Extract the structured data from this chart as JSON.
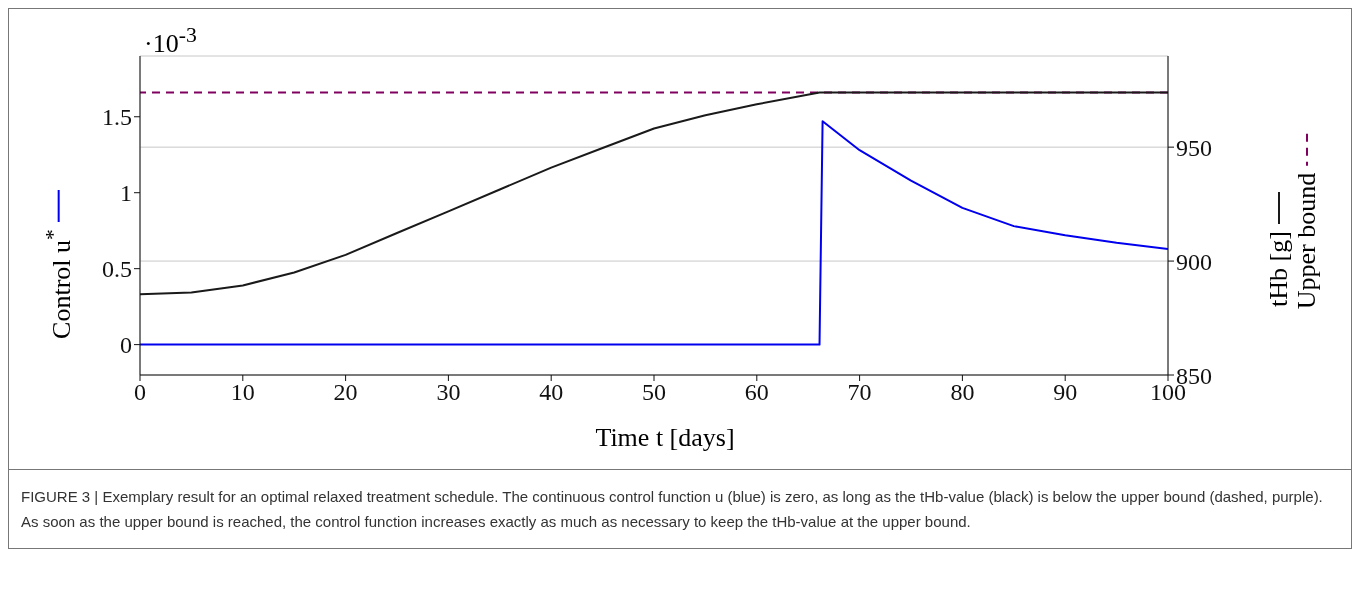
{
  "chart_data": {
    "type": "line",
    "xlabel": "Time t [days]",
    "ylabel": "Control u$^{*}$",
    "y2label": "tHb [g]",
    "xlim": [
      0,
      100
    ],
    "xticks": [
      0,
      10,
      20,
      30,
      40,
      50,
      60,
      70,
      80,
      90,
      100
    ],
    "ylim": [
      -0.2,
      1.9
    ],
    "yticks": [
      0,
      0.5,
      1,
      1.5
    ],
    "y2lim": [
      850,
      990
    ],
    "y2ticks": [
      850,
      900,
      950
    ],
    "grid": true,
    "line_style": "solid",
    "marker": "none",
    "series": [
      {
        "color": "#0000ee",
        "x": [
          0,
          66.1,
          66.4,
          70,
          75,
          80,
          85,
          90,
          95,
          100
        ],
        "values": [
          0,
          0,
          1.47,
          1.28,
          1.08,
          0.9,
          0.78,
          0.72,
          0.67,
          0.63
        ]
      },
      {
        "color": "#1a1a1a",
        "axis": "y2",
        "x": [
          0,
          5,
          10,
          15,
          20,
          25,
          30,
          35,
          40,
          45,
          50,
          55,
          60,
          66.1,
          100
        ],
        "values": [
          885.4,
          886.2,
          889.3,
          895,
          902.7,
          912.3,
          921.8,
          931.4,
          941,
          949.6,
          958.2,
          964,
          968.8,
          974,
          974
        ]
      }
    ],
    "ref_lines": [
      {
        "axis": "y2",
        "value": 974,
        "label": "Upper bound",
        "color": "#800060",
        "line_style": "dashed"
      }
    ],
    "annotations": [
      "·10$^{-3}$",
      "FIGURE 3 | Exemplary result for an optimal relaxed treatment schedule. The continuous control function u (blue) is zero, as long as the tHb-value (black) is below the upper bound (dashed, purple). As soon as the upper bound is reached, the control function increases exactly as much as necessary to keep the tHb-value at the upper bound."
    ]
  }
}
